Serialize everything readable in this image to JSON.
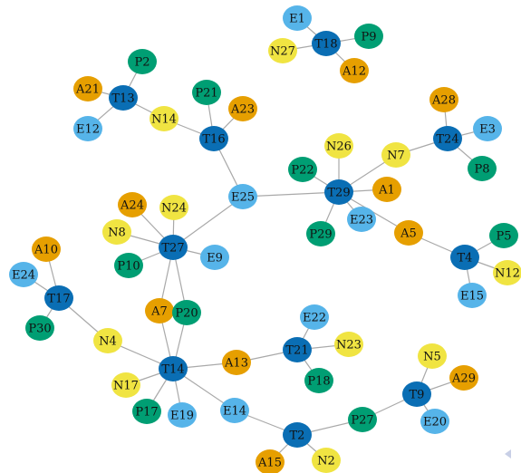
{
  "graph": {
    "colors": {
      "T": "#0a6eb4",
      "A": "#e69f00",
      "P": "#009e73",
      "E": "#56b4e9",
      "N": "#f0e442",
      "edge": "#a9a9a9",
      "label_dark": "#111111",
      "label_light": "#111111"
    },
    "nodes": [
      {
        "id": "E1",
        "type": "E"
      },
      {
        "id": "T18",
        "type": "T"
      },
      {
        "id": "P9",
        "type": "P"
      },
      {
        "id": "N27",
        "type": "N"
      },
      {
        "id": "A12",
        "type": "A"
      },
      {
        "id": "P2",
        "type": "P"
      },
      {
        "id": "A21",
        "type": "A"
      },
      {
        "id": "T13",
        "type": "T"
      },
      {
        "id": "E12",
        "type": "E"
      },
      {
        "id": "N14",
        "type": "N"
      },
      {
        "id": "P21",
        "type": "P"
      },
      {
        "id": "A23",
        "type": "A"
      },
      {
        "id": "T16",
        "type": "T"
      },
      {
        "id": "A28",
        "type": "A"
      },
      {
        "id": "E3",
        "type": "E"
      },
      {
        "id": "T24",
        "type": "T"
      },
      {
        "id": "N7",
        "type": "N"
      },
      {
        "id": "P8",
        "type": "P"
      },
      {
        "id": "N26",
        "type": "N"
      },
      {
        "id": "P22",
        "type": "P"
      },
      {
        "id": "T29",
        "type": "T"
      },
      {
        "id": "A1",
        "type": "A"
      },
      {
        "id": "E25",
        "type": "E"
      },
      {
        "id": "E23",
        "type": "E"
      },
      {
        "id": "P29",
        "type": "P"
      },
      {
        "id": "A5",
        "type": "A"
      },
      {
        "id": "A24",
        "type": "A"
      },
      {
        "id": "N24",
        "type": "N"
      },
      {
        "id": "N8",
        "type": "N"
      },
      {
        "id": "T27",
        "type": "T"
      },
      {
        "id": "E9",
        "type": "E"
      },
      {
        "id": "P10",
        "type": "P"
      },
      {
        "id": "P5",
        "type": "P"
      },
      {
        "id": "T4",
        "type": "T"
      },
      {
        "id": "N12",
        "type": "N"
      },
      {
        "id": "E15",
        "type": "E"
      },
      {
        "id": "A10",
        "type": "A"
      },
      {
        "id": "E24",
        "type": "E"
      },
      {
        "id": "T17",
        "type": "T"
      },
      {
        "id": "P30",
        "type": "P"
      },
      {
        "id": "A7",
        "type": "A"
      },
      {
        "id": "P20",
        "type": "P"
      },
      {
        "id": "E22",
        "type": "E"
      },
      {
        "id": "N4",
        "type": "N"
      },
      {
        "id": "T21",
        "type": "T"
      },
      {
        "id": "N23",
        "type": "N"
      },
      {
        "id": "A13",
        "type": "A"
      },
      {
        "id": "P18",
        "type": "P"
      },
      {
        "id": "T14",
        "type": "T"
      },
      {
        "id": "N17",
        "type": "N"
      },
      {
        "id": "N5",
        "type": "N"
      },
      {
        "id": "A29",
        "type": "A"
      },
      {
        "id": "T9",
        "type": "T"
      },
      {
        "id": "P17",
        "type": "P"
      },
      {
        "id": "E19",
        "type": "E"
      },
      {
        "id": "E14",
        "type": "E"
      },
      {
        "id": "P27",
        "type": "P"
      },
      {
        "id": "E20",
        "type": "E"
      },
      {
        "id": "T2",
        "type": "T"
      },
      {
        "id": "A15",
        "type": "A"
      },
      {
        "id": "N2",
        "type": "N"
      }
    ],
    "edges": [
      [
        "T18",
        "E1"
      ],
      [
        "T18",
        "P9"
      ],
      [
        "T18",
        "N27"
      ],
      [
        "T18",
        "A12"
      ],
      [
        "T13",
        "P2"
      ],
      [
        "T13",
        "A21"
      ],
      [
        "T13",
        "E12"
      ],
      [
        "T13",
        "N14"
      ],
      [
        "N14",
        "T16"
      ],
      [
        "T16",
        "P21"
      ],
      [
        "T16",
        "A23"
      ],
      [
        "T16",
        "E25"
      ],
      [
        "E25",
        "T29"
      ],
      [
        "E25",
        "T27"
      ],
      [
        "T29",
        "N26"
      ],
      [
        "T29",
        "P22"
      ],
      [
        "T29",
        "A1"
      ],
      [
        "T29",
        "E23"
      ],
      [
        "T29",
        "P29"
      ],
      [
        "T29",
        "N7"
      ],
      [
        "T29",
        "A5"
      ],
      [
        "N7",
        "T24"
      ],
      [
        "T24",
        "A28"
      ],
      [
        "T24",
        "E3"
      ],
      [
        "T24",
        "P8"
      ],
      [
        "A5",
        "T4"
      ],
      [
        "T4",
        "P5"
      ],
      [
        "T4",
        "N12"
      ],
      [
        "T4",
        "E15"
      ],
      [
        "T27",
        "A24"
      ],
      [
        "T27",
        "N24"
      ],
      [
        "T27",
        "N8"
      ],
      [
        "T27",
        "E9"
      ],
      [
        "T27",
        "P10"
      ],
      [
        "T27",
        "A7"
      ],
      [
        "T27",
        "P20"
      ],
      [
        "T17",
        "A10"
      ],
      [
        "T17",
        "E24"
      ],
      [
        "T17",
        "P30"
      ],
      [
        "T17",
        "N4"
      ],
      [
        "N4",
        "T14"
      ],
      [
        "A7",
        "T14"
      ],
      [
        "P20",
        "T14"
      ],
      [
        "T14",
        "A13"
      ],
      [
        "T14",
        "N17"
      ],
      [
        "T14",
        "P17"
      ],
      [
        "T14",
        "E19"
      ],
      [
        "T14",
        "E14"
      ],
      [
        "A13",
        "T21"
      ],
      [
        "T21",
        "E22"
      ],
      [
        "T21",
        "N23"
      ],
      [
        "T21",
        "P18"
      ],
      [
        "E14",
        "T2"
      ],
      [
        "T2",
        "A15"
      ],
      [
        "T2",
        "N2"
      ],
      [
        "T2",
        "P27"
      ],
      [
        "P27",
        "T9"
      ],
      [
        "T9",
        "N5"
      ],
      [
        "T9",
        "A29"
      ],
      [
        "T9",
        "E20"
      ]
    ]
  },
  "corner_icon": "collapse-arrow-icon"
}
